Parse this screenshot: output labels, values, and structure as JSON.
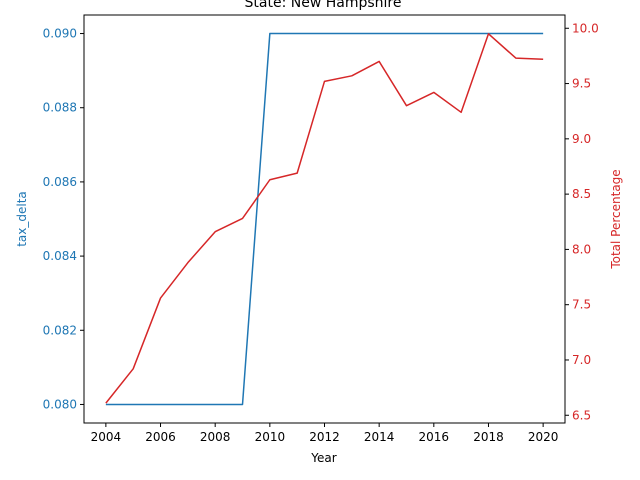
{
  "chart_data": {
    "type": "line",
    "title": "State: New Hampshire",
    "xlabel": "Year",
    "x": [
      2004,
      2005,
      2006,
      2007,
      2008,
      2009,
      2010,
      2011,
      2012,
      2013,
      2014,
      2015,
      2016,
      2017,
      2018,
      2019,
      2020
    ],
    "xlim": [
      2003.2,
      2020.8
    ],
    "x_ticks": [
      "2004",
      "2006",
      "2008",
      "2010",
      "2012",
      "2014",
      "2016",
      "2018",
      "2020"
    ],
    "series": [
      {
        "name": "tax_delta",
        "axis": "left",
        "color": "#1f77b4",
        "values": [
          0.08,
          0.08,
          0.08,
          0.08,
          0.08,
          0.08,
          0.09,
          0.09,
          0.09,
          0.09,
          0.09,
          0.09,
          0.09,
          0.09,
          0.09,
          0.09,
          0.09
        ]
      },
      {
        "name": "Total Percentage",
        "axis": "right",
        "color": "#d62728",
        "values": [
          6.61,
          6.92,
          7.56,
          7.88,
          8.16,
          8.28,
          8.63,
          8.69,
          9.52,
          9.57,
          9.7,
          9.3,
          9.42,
          9.24,
          9.95,
          9.73,
          9.72
        ]
      }
    ],
    "y_left": {
      "label": "tax_delta",
      "color": "#1f77b4",
      "lim": [
        0.0795,
        0.0905
      ],
      "ticks": [
        "0.080",
        "0.082",
        "0.084",
        "0.086",
        "0.088",
        "0.090"
      ]
    },
    "y_right": {
      "label": "Total Percentage",
      "color": "#d62728",
      "lim": [
        6.43,
        10.12
      ],
      "ticks": [
        "6.5",
        "7.0",
        "7.5",
        "8.0",
        "8.5",
        "9.0",
        "9.5",
        "10.0"
      ]
    },
    "grid": false
  }
}
